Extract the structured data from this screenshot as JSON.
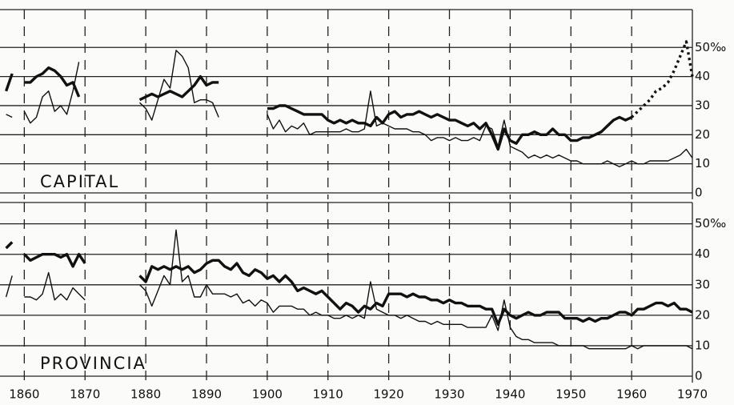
{
  "chart_data": [
    {
      "type": "line",
      "label": "CAPITAL",
      "x": [
        1857,
        1858,
        1859,
        1860,
        1861,
        1862,
        1863,
        1864,
        1865,
        1866,
        1867,
        1868,
        1869,
        1870,
        1871,
        1872,
        1873,
        1874,
        1875,
        1876,
        1877,
        1878,
        1879,
        1880,
        1881,
        1882,
        1883,
        1884,
        1885,
        1886,
        1887,
        1888,
        1889,
        1890,
        1891,
        1892,
        1893,
        1894,
        1895,
        1896,
        1897,
        1898,
        1899,
        1900,
        1901,
        1902,
        1903,
        1904,
        1905,
        1906,
        1907,
        1908,
        1909,
        1910,
        1911,
        1912,
        1913,
        1914,
        1915,
        1916,
        1917,
        1918,
        1919,
        1920,
        1921,
        1922,
        1923,
        1924,
        1925,
        1926,
        1927,
        1928,
        1929,
        1930,
        1931,
        1932,
        1933,
        1934,
        1935,
        1936,
        1937,
        1938,
        1939,
        1940,
        1941,
        1942,
        1943,
        1944,
        1945,
        1946,
        1947,
        1948,
        1949,
        1950,
        1951,
        1952,
        1953,
        1954,
        1955,
        1956,
        1957,
        1958,
        1959,
        1960,
        1961,
        1962,
        1963,
        1964,
        1965,
        1966,
        1967,
        1968,
        1969,
        1970
      ],
      "xlim": [
        1856,
        1970
      ],
      "ylim": [
        0,
        63
      ],
      "yticks": [
        0,
        10,
        20,
        30,
        40,
        {
          "value": 50,
          "label": "50‰"
        }
      ],
      "series": [
        {
          "color": "#111111",
          "width": 3.4,
          "values": [
            35,
            41,
            null,
            38,
            38,
            40,
            41,
            43,
            42,
            40,
            37,
            38,
            33,
            null,
            null,
            null,
            null,
            null,
            null,
            null,
            null,
            null,
            32,
            33,
            34,
            33,
            34,
            35,
            34,
            33,
            35,
            37,
            40,
            37,
            38,
            38,
            null,
            null,
            null,
            null,
            null,
            null,
            null,
            29,
            29,
            30,
            30,
            29,
            28,
            27,
            27,
            27,
            27,
            25,
            24,
            25,
            24,
            25,
            24,
            24,
            23,
            26,
            24,
            27,
            28,
            26,
            27,
            27,
            28,
            27,
            26,
            27,
            26,
            25,
            25,
            24,
            23,
            24,
            22,
            24,
            20,
            15,
            22,
            18,
            17,
            20,
            20,
            21,
            20,
            20,
            22,
            20,
            20,
            18,
            18,
            19,
            19,
            20,
            21,
            23,
            25,
            26,
            25,
            26,
            null,
            null,
            null,
            null,
            null,
            null,
            null,
            null,
            null,
            null
          ]
        },
        {
          "color": "#111111",
          "width": 1.4,
          "values": [
            27,
            26,
            null,
            28,
            24,
            26,
            33,
            35,
            28,
            30,
            27,
            35,
            45,
            null,
            null,
            null,
            null,
            null,
            null,
            null,
            null,
            null,
            31,
            29,
            25,
            32,
            39,
            36,
            49,
            47,
            43,
            31,
            32,
            32,
            31,
            26,
            null,
            null,
            null,
            null,
            null,
            null,
            null,
            27,
            22,
            25,
            21,
            23,
            22,
            24,
            20,
            21,
            21,
            21,
            21,
            21,
            22,
            21,
            21,
            22,
            35,
            23,
            24,
            23,
            22,
            22,
            22,
            21,
            21,
            20,
            18,
            19,
            19,
            18,
            19,
            18,
            18,
            19,
            18,
            23,
            22,
            16,
            25,
            16,
            15,
            14,
            12,
            13,
            12,
            13,
            12,
            13,
            12,
            11,
            11,
            10,
            10,
            10,
            10,
            11,
            10,
            9,
            10,
            11,
            10,
            10,
            11,
            11,
            11,
            11,
            12,
            13,
            15,
            12
          ]
        },
        {
          "color": "#111111",
          "width": 3.4,
          "dash": true,
          "x": [
            1960,
            1961,
            1962,
            1963,
            1964,
            1965,
            1966,
            1967,
            1968,
            1969,
            1970
          ],
          "values": [
            26,
            28,
            30,
            32,
            35,
            36,
            38,
            42,
            47,
            52,
            40
          ]
        }
      ]
    },
    {
      "type": "line",
      "label": "PROVINCIA",
      "x": [
        1857,
        1858,
        1859,
        1860,
        1861,
        1862,
        1863,
        1864,
        1865,
        1866,
        1867,
        1868,
        1869,
        1870,
        1871,
        1872,
        1873,
        1874,
        1875,
        1876,
        1877,
        1878,
        1879,
        1880,
        1881,
        1882,
        1883,
        1884,
        1885,
        1886,
        1887,
        1888,
        1889,
        1890,
        1891,
        1892,
        1893,
        1894,
        1895,
        1896,
        1897,
        1898,
        1899,
        1900,
        1901,
        1902,
        1903,
        1904,
        1905,
        1906,
        1907,
        1908,
        1909,
        1910,
        1911,
        1912,
        1913,
        1914,
        1915,
        1916,
        1917,
        1918,
        1919,
        1920,
        1921,
        1922,
        1923,
        1924,
        1925,
        1926,
        1927,
        1928,
        1929,
        1930,
        1931,
        1932,
        1933,
        1934,
        1935,
        1936,
        1937,
        1938,
        1939,
        1940,
        1941,
        1942,
        1943,
        1944,
        1945,
        1946,
        1947,
        1948,
        1949,
        1950,
        1951,
        1952,
        1953,
        1954,
        1955,
        1956,
        1957,
        1958,
        1959,
        1960,
        1961,
        1962,
        1963,
        1964,
        1965,
        1966,
        1967,
        1968,
        1969,
        1970
      ],
      "xlim": [
        1856,
        1970
      ],
      "xticks": [
        1860,
        1870,
        1880,
        1890,
        1900,
        1910,
        1920,
        1930,
        1940,
        1950,
        1960,
        1970
      ],
      "ylim": [
        0,
        57
      ],
      "yticks": [
        0,
        10,
        20,
        30,
        40,
        {
          "value": 50,
          "label": "50‰"
        }
      ],
      "series": [
        {
          "color": "#111111",
          "width": 3.4,
          "values": [
            42,
            44,
            null,
            40,
            38,
            39,
            40,
            40,
            40,
            39,
            40,
            36,
            40,
            37,
            null,
            null,
            null,
            null,
            null,
            null,
            null,
            null,
            33,
            31,
            36,
            35,
            36,
            35,
            36,
            35,
            36,
            34,
            35,
            37,
            38,
            38,
            36,
            35,
            37,
            34,
            33,
            35,
            34,
            32,
            33,
            31,
            33,
            31,
            28,
            29,
            28,
            27,
            28,
            26,
            24,
            22,
            24,
            23,
            21,
            23,
            22,
            24,
            23,
            27,
            27,
            27,
            26,
            27,
            26,
            26,
            25,
            25,
            24,
            25,
            24,
            24,
            23,
            23,
            23,
            22,
            22,
            17,
            22,
            20,
            19,
            20,
            21,
            20,
            20,
            21,
            21,
            21,
            19,
            19,
            19,
            18,
            19,
            18,
            19,
            19,
            20,
            21,
            21,
            20,
            22,
            22,
            23,
            24,
            24,
            23,
            24,
            22,
            22,
            21
          ]
        },
        {
          "color": "#111111",
          "width": 1.4,
          "values": [
            26,
            33,
            null,
            26,
            26,
            25,
            27,
            34,
            25,
            27,
            25,
            29,
            27,
            25,
            null,
            null,
            null,
            null,
            null,
            null,
            null,
            null,
            30,
            28,
            23,
            28,
            33,
            30,
            48,
            31,
            33,
            26,
            26,
            30,
            27,
            27,
            27,
            26,
            27,
            24,
            25,
            23,
            25,
            24,
            21,
            23,
            23,
            23,
            22,
            22,
            20,
            21,
            20,
            20,
            19,
            19,
            20,
            19,
            20,
            19,
            31,
            22,
            21,
            20,
            20,
            19,
            20,
            19,
            18,
            18,
            17,
            18,
            17,
            17,
            17,
            17,
            16,
            16,
            16,
            16,
            20,
            15,
            25,
            16,
            13,
            12,
            12,
            11,
            11,
            11,
            11,
            10,
            10,
            10,
            10,
            10,
            9,
            9,
            9,
            9,
            9,
            9,
            9,
            10,
            9,
            10,
            10,
            10,
            10,
            10,
            10,
            10,
            10,
            9
          ]
        }
      ]
    }
  ]
}
